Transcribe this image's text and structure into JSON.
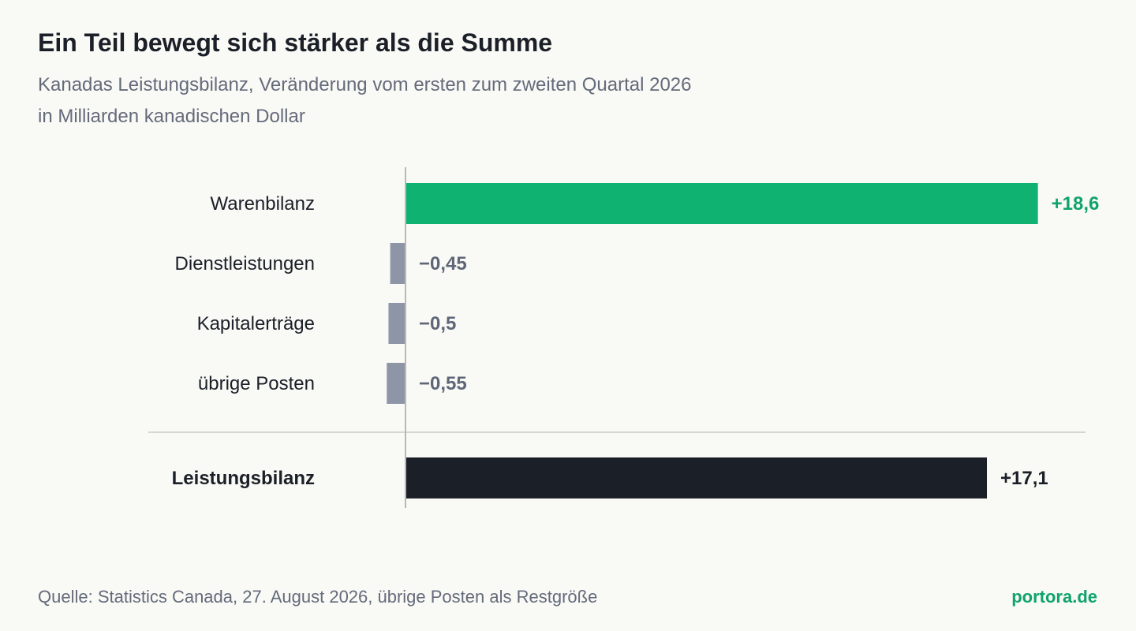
{
  "header": {
    "title": "Ein Teil bewegt sich stärker als die Summe",
    "subtitle_line1": "Kanadas Leistungsbilanz, Veränderung vom ersten zum zweiten Quartal 2026",
    "subtitle_line2": "in Milliarden kanadischen Dollar"
  },
  "footer": {
    "source": "Quelle: Statistics Canada, 27. August 2026, übrige Posten als Restgröße",
    "brand": "portora.de"
  },
  "colors": {
    "positive": "#10b272",
    "negative": "#8e95a6",
    "total": "#1b1f27",
    "positive_label": "#10a36b",
    "negative_label": "#5f6677",
    "total_label": "#1b1f27",
    "axis": "#b9b9b4"
  },
  "chart_data": {
    "type": "bar",
    "orientation": "horizontal",
    "categories": [
      "Warenbilanz",
      "Dienstleistungen",
      "Kapitalerträge",
      "übrige Posten",
      "Leistungsbilanz"
    ],
    "values": [
      18.6,
      -0.45,
      -0.5,
      -0.55,
      17.1
    ],
    "labels": [
      "+18,6",
      "−0,45",
      "−0,5",
      "−0,55",
      "+17,1"
    ],
    "total_category": "Leistungsbilanz",
    "xlim": [
      -0.6,
      18.6
    ],
    "grid": false
  }
}
